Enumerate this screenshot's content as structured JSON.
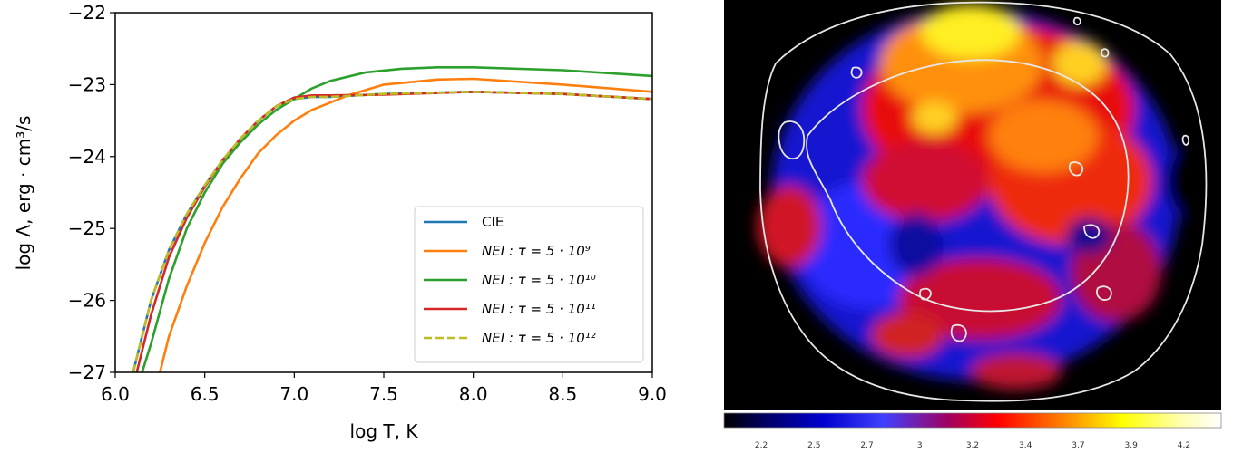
{
  "chart_data": [
    {
      "type": "line",
      "xlabel": "log T, K",
      "ylabel": "log Λ, erg · cm³/s",
      "xlim": [
        6.0,
        9.0
      ],
      "ylim": [
        -27,
        -22
      ],
      "xticks": [
        "6.0",
        "6.5",
        "7.0",
        "7.5",
        "8.0",
        "8.5",
        "9.0"
      ],
      "yticks": [
        "−22",
        "−23",
        "−24",
        "−25",
        "−26",
        "−27"
      ],
      "legend_position": "lower-right",
      "series": [
        {
          "name": "CIE",
          "color": "#1f77b4",
          "dash": "solid",
          "x": [
            6.1,
            6.2,
            6.3,
            6.4,
            6.5,
            6.6,
            6.7,
            6.8,
            6.9,
            7.0,
            7.1,
            7.2,
            7.5,
            8.0,
            8.5,
            9.0
          ],
          "y": [
            -27.0,
            -26.0,
            -25.3,
            -24.8,
            -24.4,
            -24.05,
            -23.75,
            -23.5,
            -23.3,
            -23.2,
            -23.17,
            -23.17,
            -23.13,
            -23.1,
            -23.13,
            -23.2
          ]
        },
        {
          "name": "NEI : τ = 5 · 10⁹",
          "color": "#ff7f0e",
          "dash": "solid",
          "x": [
            6.25,
            6.3,
            6.4,
            6.5,
            6.6,
            6.7,
            6.8,
            6.9,
            7.0,
            7.1,
            7.2,
            7.3,
            7.5,
            7.8,
            8.0,
            8.5,
            9.0
          ],
          "y": [
            -27.0,
            -26.5,
            -25.8,
            -25.2,
            -24.7,
            -24.3,
            -23.95,
            -23.7,
            -23.5,
            -23.35,
            -23.25,
            -23.15,
            -23.0,
            -22.93,
            -22.92,
            -23.0,
            -23.1
          ]
        },
        {
          "name": "NEI : τ = 5 · 10¹⁰",
          "color": "#2ca02c",
          "dash": "solid",
          "x": [
            6.15,
            6.2,
            6.3,
            6.4,
            6.5,
            6.6,
            6.7,
            6.8,
            6.9,
            7.0,
            7.1,
            7.2,
            7.4,
            7.6,
            7.8,
            8.0,
            8.5,
            9.0
          ],
          "y": [
            -27.0,
            -26.6,
            -25.7,
            -25.0,
            -24.5,
            -24.1,
            -23.8,
            -23.55,
            -23.35,
            -23.2,
            -23.05,
            -22.95,
            -22.83,
            -22.78,
            -22.76,
            -22.76,
            -22.8,
            -22.88
          ]
        },
        {
          "name": "NEI : τ = 5 · 10¹¹",
          "color": "#d62728",
          "dash": "solid",
          "x": [
            6.12,
            6.2,
            6.3,
            6.4,
            6.5,
            6.6,
            6.7,
            6.8,
            6.9,
            7.0,
            7.1,
            7.2,
            7.5,
            8.0,
            8.5,
            9.0
          ],
          "y": [
            -27.0,
            -26.2,
            -25.4,
            -24.85,
            -24.42,
            -24.05,
            -23.75,
            -23.5,
            -23.3,
            -23.18,
            -23.15,
            -23.15,
            -23.14,
            -23.1,
            -23.13,
            -23.2
          ]
        },
        {
          "name": "NEI : τ = 5 · 10¹²",
          "color": "#bcbd22",
          "dash": "dashed",
          "x": [
            6.1,
            6.2,
            6.3,
            6.4,
            6.5,
            6.6,
            6.7,
            6.8,
            6.9,
            7.0,
            7.1,
            7.2,
            7.5,
            8.0,
            8.5,
            9.0
          ],
          "y": [
            -27.0,
            -26.0,
            -25.3,
            -24.8,
            -24.4,
            -24.05,
            -23.75,
            -23.5,
            -23.3,
            -23.2,
            -23.17,
            -23.17,
            -23.13,
            -23.1,
            -23.13,
            -23.2
          ]
        }
      ]
    },
    {
      "type": "heatmap",
      "colormap": "black-blue-red-yellow-white",
      "contour_color": "#e0e0e0",
      "colorbar_ticks": [
        "2.2",
        "2.5",
        "2.7",
        "3",
        "3.2",
        "3.4",
        "3.7",
        "3.9",
        "4.2"
      ]
    }
  ]
}
